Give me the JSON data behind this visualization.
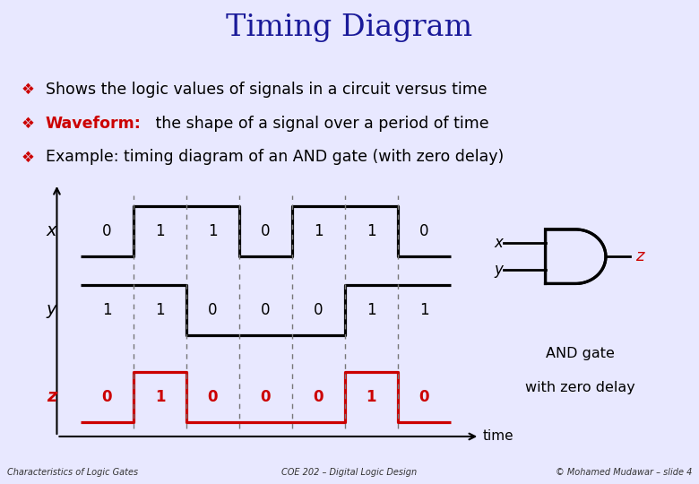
{
  "title": "Timing Diagram",
  "title_color": "#1a1a99",
  "title_bg_color": "#c8c8f8",
  "body_bg_color": "#e8e8ff",
  "gate_bg_color": "#ffffff",
  "bullet_diamond_color": "#cc0000",
  "x_signal": [
    0,
    1,
    1,
    0,
    1,
    1,
    0
  ],
  "y_signal": [
    1,
    1,
    0,
    0,
    0,
    1,
    1
  ],
  "z_signal": [
    0,
    1,
    0,
    0,
    0,
    1,
    0
  ],
  "signal_color_x": "#000000",
  "signal_color_y": "#000000",
  "signal_color_z": "#cc0000",
  "dashed_color": "#777777",
  "footer_left": "Characteristics of Logic Gates",
  "footer_center": "COE 202 – Digital Logic Design",
  "footer_right": "© Mohamed Mudawar – slide 4"
}
